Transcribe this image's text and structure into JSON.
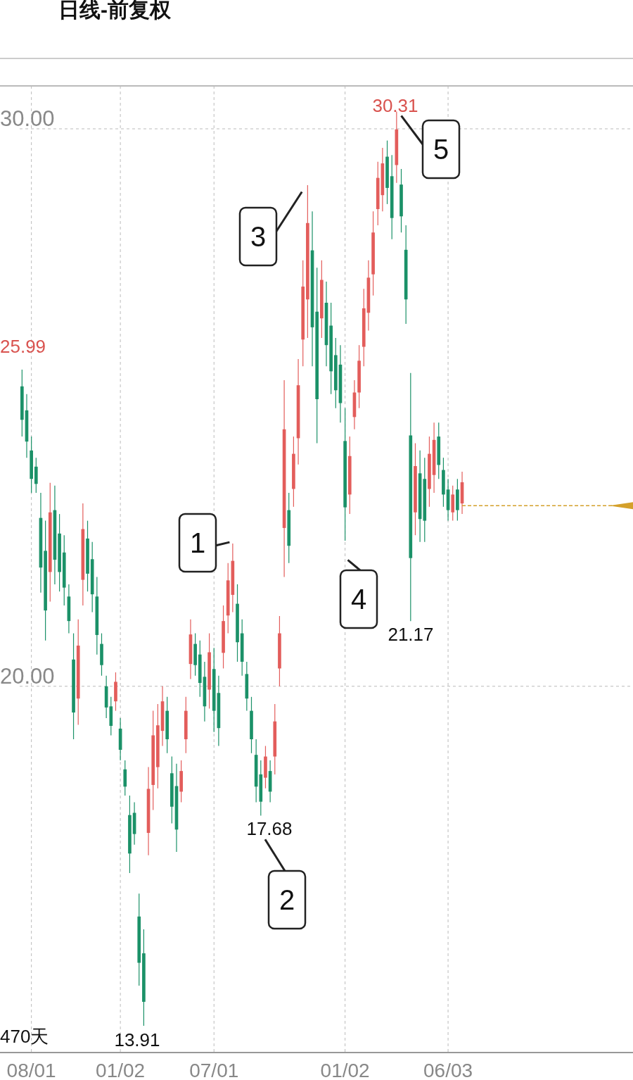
{
  "chart_data": {
    "type": "candlestick",
    "title": "日线-前复权",
    "categories": [
      null,
      null,
      "08/01",
      null,
      null,
      null,
      null,
      null,
      null,
      null,
      null,
      null,
      null,
      null,
      null,
      null,
      null,
      null,
      null,
      null,
      null,
      "01/02",
      null,
      null,
      null,
      null,
      null,
      null,
      null,
      null,
      null,
      null,
      null,
      null,
      null,
      null,
      null,
      null,
      null,
      null,
      null,
      "07/01",
      null,
      null,
      null,
      null,
      null,
      null,
      null,
      null,
      null,
      null,
      null,
      null,
      null,
      null,
      null,
      null,
      null,
      null,
      null,
      null,
      null,
      null,
      null,
      null,
      null,
      null,
      null,
      "01/02",
      null,
      null,
      null,
      null,
      null,
      null,
      null,
      null,
      null,
      null,
      null,
      null,
      null,
      null,
      null,
      null,
      null,
      null,
      null,
      null,
      null,
      "06/03",
      null,
      null,
      null,
      null,
      null,
      null,
      null,
      null,
      null,
      null,
      null,
      null,
      null,
      null,
      null,
      null,
      null,
      null,
      null,
      null,
      null,
      null,
      null,
      null,
      null,
      null,
      null,
      null,
      null,
      null,
      null,
      null,
      null,
      null,
      null,
      null,
      null,
      null,
      null
    ],
    "ohlc": [
      [
        25.38,
        25.68,
        24.48,
        24.78
      ],
      [
        24.95,
        25.24,
        24.1,
        24.39
      ],
      [
        24.23,
        24.48,
        23.47,
        23.72
      ],
      [
        23.94,
        24.1,
        23.47,
        23.63
      ],
      [
        23.02,
        23.47,
        21.68,
        22.13
      ],
      [
        22.43,
        22.97,
        20.82,
        21.36
      ],
      [
        22.05,
        23.65,
        21.52,
        23.12
      ],
      [
        23.16,
        23.6,
        21.83,
        22.27
      ],
      [
        22.74,
        23.09,
        21.7,
        22.05
      ],
      [
        22.4,
        22.71,
        21.45,
        21.77
      ],
      [
        21.61,
        21.83,
        20.95,
        21.17
      ],
      [
        20.48,
        20.95,
        19.05,
        19.53
      ],
      [
        19.78,
        21.2,
        19.31,
        20.73
      ],
      [
        21.91,
        23.28,
        21.45,
        22.82
      ],
      [
        22.65,
        22.97,
        21.7,
        22.02
      ],
      [
        22.28,
        22.59,
        21.33,
        21.65
      ],
      [
        21.61,
        21.96,
        20.57,
        20.92
      ],
      [
        20.76,
        20.95,
        20.19,
        20.38
      ],
      [
        20.0,
        20.19,
        19.43,
        19.62
      ],
      [
        19.64,
        19.81,
        19.12,
        19.29
      ],
      [
        19.73,
        20.25,
        19.56,
        20.08
      ],
      [
        19.24,
        19.43,
        18.67,
        18.86
      ],
      [
        18.51,
        18.67,
        18.04,
        18.2
      ],
      [
        17.69,
        18.04,
        16.65,
        17.0
      ],
      [
        17.73,
        17.92,
        17.16,
        17.35
      ],
      [
        15.87,
        16.28,
        14.63,
        15.04
      ],
      [
        15.21,
        15.64,
        13.91,
        14.34
      ],
      [
        17.37,
        18.55,
        16.97,
        18.16
      ],
      [
        18.23,
        19.56,
        17.78,
        19.12
      ],
      [
        18.55,
        19.68,
        18.17,
        19.3
      ],
      [
        19.2,
        20.0,
        18.93,
        19.73
      ],
      [
        19.56,
        19.81,
        18.8,
        19.05
      ],
      [
        18.44,
        18.74,
        17.54,
        17.84
      ],
      [
        18.21,
        18.61,
        17.03,
        17.43
      ],
      [
        18.11,
        18.67,
        17.92,
        18.48
      ],
      [
        19.05,
        19.81,
        18.8,
        19.56
      ],
      [
        20.4,
        21.2,
        20.13,
        20.93
      ],
      [
        20.76,
        20.95,
        20.19,
        20.38
      ],
      [
        20.57,
        20.82,
        19.81,
        20.06
      ],
      [
        20.17,
        20.44,
        19.37,
        19.64
      ],
      [
        19.94,
        20.95,
        19.6,
        20.61
      ],
      [
        20.31,
        20.69,
        19.18,
        19.56
      ],
      [
        19.88,
        20.19,
        18.93,
        19.25
      ],
      [
        20.6,
        21.45,
        20.32,
        21.17
      ],
      [
        21.27,
        22.21,
        20.95,
        21.9
      ],
      [
        21.64,
        22.56,
        21.33,
        22.25
      ],
      [
        21.48,
        21.83,
        20.44,
        20.79
      ],
      [
        20.95,
        21.2,
        20.19,
        20.44
      ],
      [
        20.22,
        20.44,
        19.56,
        19.78
      ],
      [
        19.56,
        19.81,
        18.8,
        19.05
      ],
      [
        18.77,
        19.05,
        17.92,
        18.2
      ],
      [
        18.42,
        18.67,
        17.68,
        17.93
      ],
      [
        18.36,
        18.93,
        18.17,
        18.74
      ],
      [
        18.48,
        18.67,
        17.92,
        18.11
      ],
      [
        18.74,
        19.68,
        18.42,
        19.37
      ],
      [
        20.32,
        21.26,
        20.0,
        20.95
      ],
      [
        22.84,
        25.49,
        21.96,
        24.61
      ],
      [
        23.16,
        23.47,
        22.21,
        22.52
      ],
      [
        23.54,
        24.48,
        23.22,
        24.17
      ],
      [
        24.45,
        25.87,
        23.98,
        25.4
      ],
      [
        26.22,
        27.64,
        25.74,
        27.17
      ],
      [
        26.94,
        28.99,
        26.25,
        28.31
      ],
      [
        27.82,
        28.52,
        25.74,
        26.44
      ],
      [
        26.72,
        27.51,
        24.36,
        25.15
      ],
      [
        26.6,
        27.64,
        26.25,
        27.29
      ],
      [
        26.88,
        27.26,
        25.74,
        26.12
      ],
      [
        26.47,
        26.88,
        25.24,
        25.65
      ],
      [
        25.94,
        26.25,
        24.99,
        25.31
      ],
      [
        25.77,
        26.12,
        24.73,
        25.08
      ],
      [
        24.4,
        24.99,
        22.61,
        23.21
      ],
      [
        23.44,
        24.48,
        23.09,
        24.13
      ],
      [
        24.83,
        25.49,
        24.61,
        25.27
      ],
      [
        25.27,
        26.12,
        24.99,
        25.84
      ],
      [
        26.09,
        27.13,
        25.74,
        26.78
      ],
      [
        26.7,
        27.64,
        26.38,
        27.33
      ],
      [
        27.39,
        28.52,
        27.01,
        28.14
      ],
      [
        28.56,
        29.41,
        28.27,
        29.12
      ],
      [
        28.81,
        29.66,
        28.52,
        29.38
      ],
      [
        29.5,
        29.79,
        28.65,
        28.94
      ],
      [
        29.15,
        29.53,
        28.02,
        28.4
      ],
      [
        29.35,
        30.31,
        29.03,
        29.99
      ],
      [
        29.0,
        29.28,
        28.14,
        28.43
      ],
      [
        27.83,
        28.27,
        26.5,
        26.94
      ],
      [
        24.5,
        25.62,
        21.17,
        22.3
      ],
      [
        23.12,
        24.36,
        22.71,
        23.95
      ],
      [
        23.82,
        24.23,
        22.59,
        23.0
      ],
      [
        23.72,
        24.1,
        22.59,
        22.97
      ],
      [
        23.54,
        24.48,
        23.22,
        24.17
      ],
      [
        23.79,
        24.73,
        23.47,
        24.42
      ],
      [
        24.48,
        24.73,
        23.72,
        23.97
      ],
      [
        23.88,
        24.1,
        23.22,
        23.44
      ],
      [
        23.53,
        23.72,
        22.97,
        23.16
      ],
      [
        23.12,
        23.6,
        22.97,
        23.44
      ],
      [
        23.53,
        23.72,
        22.97,
        23.16
      ],
      [
        23.28,
        23.85,
        23.09,
        23.66
      ],
      null,
      null,
      null,
      null,
      null,
      null,
      null,
      null,
      null,
      null,
      null,
      null,
      null,
      null,
      null,
      null,
      null,
      null,
      null,
      null,
      null,
      null,
      null,
      null,
      null,
      null,
      null,
      null,
      null,
      null,
      null,
      null,
      null,
      null,
      null,
      null
    ],
    "colors": [
      "#1b9168",
      "#1b9168",
      "#1b9168",
      "#1b9168",
      "#1b9168",
      "#1b9168",
      "#e35d5b",
      "#1b9168",
      "#1b9168",
      "#1b9168",
      "#1b9168",
      "#1b9168",
      "#e35d5b",
      "#e35d5b",
      "#1b9168",
      "#1b9168",
      "#1b9168",
      "#1b9168",
      "#1b9168",
      "#1b9168",
      "#e35d5b",
      "#1b9168",
      "#1b9168",
      "#1b9168",
      "#1b9168",
      "#1b9168",
      "#1b9168",
      "#e35d5b",
      "#e35d5b",
      "#e35d5b",
      "#e35d5b",
      "#1b9168",
      "#1b9168",
      "#1b9168",
      "#e35d5b",
      "#e35d5b",
      "#e35d5b",
      "#1b9168",
      "#1b9168",
      "#1b9168",
      "#e35d5b",
      "#1b9168",
      "#1b9168",
      "#e35d5b",
      "#e35d5b",
      "#e35d5b",
      "#1b9168",
      "#1b9168",
      "#1b9168",
      "#1b9168",
      "#1b9168",
      "#1b9168",
      "#e35d5b",
      "#1b9168",
      "#e35d5b",
      "#e35d5b",
      "#e35d5b",
      "#1b9168",
      "#e35d5b",
      "#e35d5b",
      "#e35d5b",
      "#e35d5b",
      "#1b9168",
      "#1b9168",
      "#e35d5b",
      "#1b9168",
      "#1b9168",
      "#1b9168",
      "#1b9168",
      "#1b9168",
      "#e35d5b",
      "#e35d5b",
      "#e35d5b",
      "#e35d5b",
      "#e35d5b",
      "#e35d5b",
      "#e35d5b",
      "#e35d5b",
      "#1b9168",
      "#1b9168",
      "#e35d5b",
      "#1b9168",
      "#1b9168",
      "#1b9168",
      "#e35d5b",
      "#1b9168",
      "#1b9168",
      "#e35d5b",
      "#e35d5b",
      "#1b9168",
      "#1b9168",
      "#1b9168",
      "#e35d5b",
      "#1b9168",
      "#e35d5b",
      null,
      null,
      null,
      null,
      null,
      null,
      null,
      null,
      null,
      null,
      null,
      null,
      null,
      null,
      null,
      null,
      null,
      null,
      null,
      null,
      null,
      null,
      null,
      null,
      null,
      null,
      null,
      null,
      null,
      null,
      null,
      null,
      null,
      null,
      null,
      null
    ],
    "ylim": [
      13.43,
      30.77
    ],
    "yticks": [
      {
        "value": 30,
        "label": "30.00"
      },
      {
        "value": 20,
        "label": "20.00"
      }
    ],
    "grid": true,
    "ref_lines": [
      {
        "axis": "y",
        "value": 23.24,
        "color": "#d4a02a",
        "line_style": "dashed"
      }
    ],
    "annotations": [
      "25.99",
      "30.31",
      "13.91",
      "17.68",
      "21.17",
      "470天",
      "1",
      "2",
      "3",
      "4",
      "5"
    ]
  }
}
